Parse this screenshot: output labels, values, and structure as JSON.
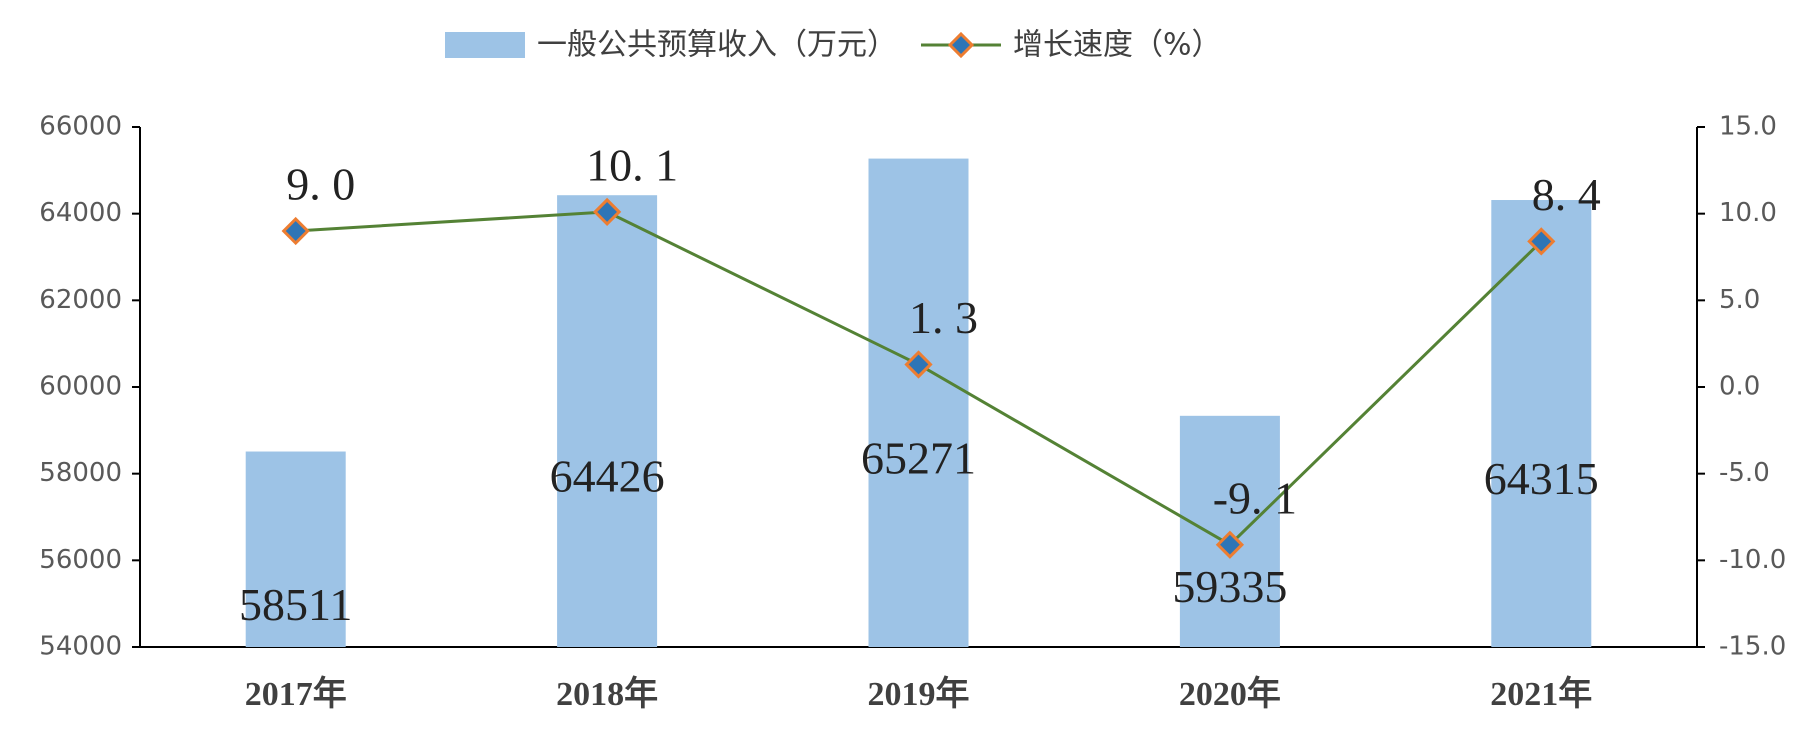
{
  "chart_data": {
    "type": "bar-line",
    "categories": [
      "2017年",
      "2018年",
      "2019年",
      "2020年",
      "2021年"
    ],
    "series": [
      {
        "name": "一般公共预算收入（万元）",
        "type": "bar",
        "color": "#9dc3e6",
        "values": [
          58511,
          64426,
          65271,
          59335,
          64315
        ]
      },
      {
        "name": "增长速度（%）",
        "type": "line",
        "axis": "y2",
        "color": "#548235",
        "marker_fill": "#2e75b6",
        "marker_edge": "#ed7d31",
        "values": [
          9.0,
          10.1,
          1.3,
          -9.1,
          8.4
        ],
        "value_labels": [
          "9. 0",
          "10. 1",
          "1. 3",
          "-9. 1",
          "8. 4"
        ]
      }
    ],
    "ylim": [
      54000,
      66000
    ],
    "yticks": [
      54000,
      56000,
      58000,
      60000,
      62000,
      64000,
      66000
    ],
    "y2lim": [
      -15,
      15
    ],
    "y2ticks": [
      {
        "value": -15,
        "label": "-15.0"
      },
      {
        "value": -10,
        "label": "-10.0"
      },
      {
        "value": -5,
        "label": "-5.0"
      },
      {
        "value": 0,
        "label": "0.0"
      },
      {
        "value": 5,
        "label": "5.0"
      },
      {
        "value": 10,
        "label": "10.0"
      },
      {
        "value": 15,
        "label": "15.0"
      }
    ],
    "grid": false,
    "legend": "top"
  }
}
